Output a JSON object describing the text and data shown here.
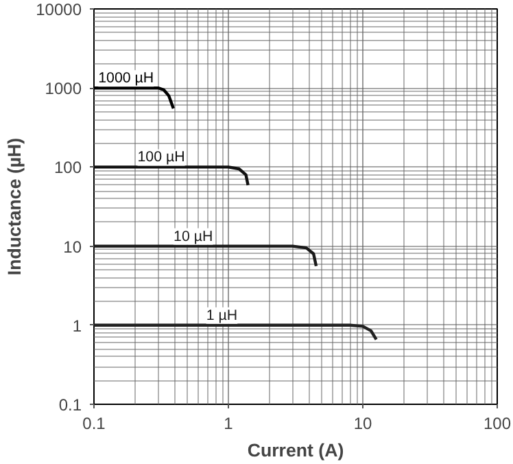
{
  "chart_data": {
    "type": "line",
    "xlabel": "Current (A)",
    "ylabel": "Inductance (µH)",
    "log": "xy",
    "xlim": [
      0.1,
      100
    ],
    "ylim": [
      0.1,
      10000
    ],
    "xticks": [
      0.1,
      1,
      10,
      100
    ],
    "yticks": [
      0.1,
      1,
      10,
      100,
      1000,
      10000
    ],
    "grid": true,
    "line_style": "solid",
    "marker": "none",
    "series": [
      {
        "name": "1000 µH",
        "color": "#000000",
        "x": [
          0.1,
          0.3,
          0.33,
          0.36,
          0.39
        ],
        "values": [
          1000,
          1000,
          950,
          800,
          550
        ]
      },
      {
        "name": "100 µH",
        "color": "#111111",
        "x": [
          0.1,
          1.0,
          1.2,
          1.35,
          1.4
        ],
        "values": [
          100,
          100,
          95,
          80,
          59
        ]
      },
      {
        "name": "10 µH",
        "color": "#1a1a1a",
        "x": [
          0.1,
          3.0,
          3.8,
          4.3,
          4.5
        ],
        "values": [
          10,
          10,
          9.5,
          8,
          5.6
        ]
      },
      {
        "name": "1 µH",
        "color": "#222222",
        "x": [
          0.1,
          8,
          10,
          11.5,
          12.6
        ],
        "values": [
          1,
          1,
          0.97,
          0.85,
          0.66
        ]
      }
    ]
  }
}
